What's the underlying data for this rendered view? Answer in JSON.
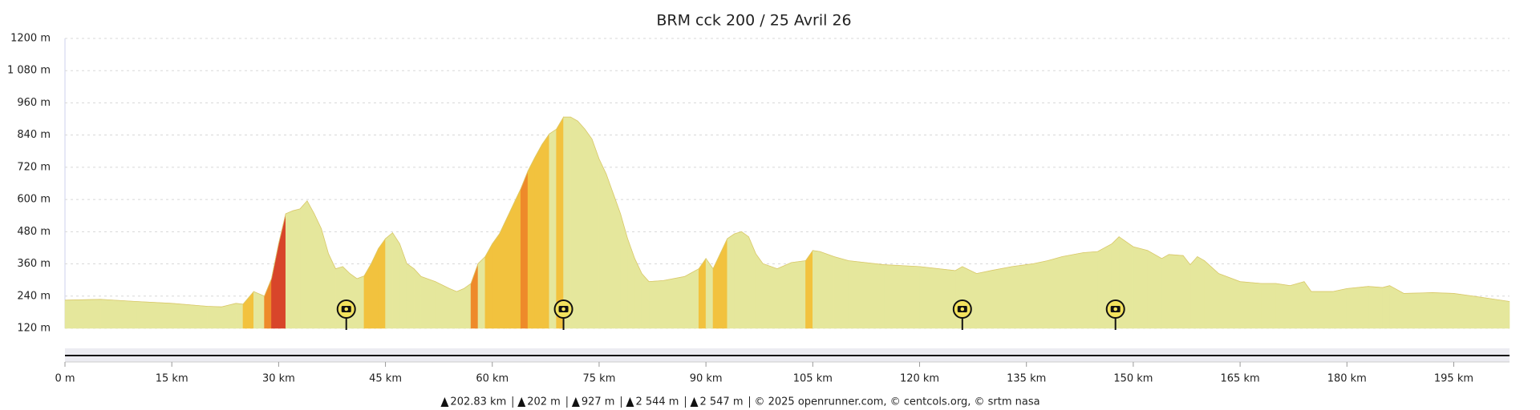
{
  "chart_data": {
    "type": "area",
    "title": "BRM cck 200 / 25 Avril 26",
    "color": "#e5e79c",
    "slope_colors": [
      "#e5e79c",
      "#f2c23e",
      "#ee8a2a",
      "#d8452a"
    ],
    "x": [
      0,
      5,
      10,
      15,
      20,
      22,
      24,
      25,
      26.5,
      28,
      29,
      30,
      31,
      32,
      33,
      34,
      35,
      36,
      37,
      38,
      39,
      40,
      41,
      42,
      43,
      44,
      45,
      46,
      47,
      48,
      49,
      50,
      52,
      54,
      55,
      56,
      57,
      58,
      59,
      60,
      61,
      62,
      63,
      64,
      65,
      66,
      67,
      68,
      69,
      70,
      71,
      72,
      73,
      74,
      75,
      76,
      77,
      78,
      79,
      80,
      81,
      82,
      84,
      87,
      89,
      90,
      91,
      92,
      93,
      94,
      95,
      96,
      97,
      98,
      100,
      102,
      104,
      105,
      106,
      108,
      110,
      115,
      120,
      125,
      126,
      128,
      130,
      133,
      136,
      138,
      140,
      143,
      145,
      147,
      148,
      150,
      152,
      154,
      155,
      157,
      158,
      159,
      160,
      162,
      165,
      168,
      170,
      172,
      174,
      175,
      178,
      180,
      183,
      185,
      186,
      188,
      192,
      195,
      198,
      202.83
    ],
    "values": [
      225,
      228,
      220,
      213,
      202,
      200,
      213,
      210,
      257,
      240,
      305,
      435,
      547,
      558,
      565,
      595,
      547,
      491,
      398,
      342,
      350,
      324,
      305,
      315,
      361,
      417,
      454,
      476,
      435,
      361,
      342,
      313,
      294,
      268,
      257,
      268,
      287,
      361,
      387,
      435,
      472,
      528,
      584,
      640,
      706,
      758,
      806,
      844,
      862,
      907,
      907,
      892,
      862,
      825,
      751,
      695,
      621,
      547,
      454,
      380,
      324,
      294,
      298,
      313,
      342,
      380,
      342,
      398,
      454,
      472,
      480,
      461,
      398,
      361,
      342,
      365,
      372,
      410,
      406,
      387,
      372,
      357,
      350,
      335,
      350,
      324,
      335,
      350,
      361,
      372,
      387,
      402,
      406,
      435,
      461,
      424,
      410,
      380,
      395,
      391,
      357,
      387,
      372,
      324,
      294,
      287,
      287,
      279,
      294,
      257,
      257,
      268,
      276,
      272,
      279,
      250,
      253,
      250,
      239,
      220
    ],
    "xlim": [
      0,
      202.83
    ],
    "ylim": [
      120,
      1200
    ],
    "yticks": [
      {
        "value": 120,
        "label": "120 m"
      },
      {
        "value": 240,
        "label": "240 m"
      },
      {
        "value": 360,
        "label": "360 m"
      },
      {
        "value": 480,
        "label": "480 m"
      },
      {
        "value": 600,
        "label": "600 m"
      },
      {
        "value": 720,
        "label": "720 m"
      },
      {
        "value": 840,
        "label": "840 m"
      },
      {
        "value": 960,
        "label": "960 m"
      },
      {
        "value": 1080,
        "label": "1 080 m"
      },
      {
        "value": 1200,
        "label": "1200 m"
      }
    ],
    "xticks": [
      {
        "value": 0,
        "label": "0 m"
      },
      {
        "value": 15,
        "label": "15 km"
      },
      {
        "value": 30,
        "label": "30 km"
      },
      {
        "value": 45,
        "label": "45 km"
      },
      {
        "value": 60,
        "label": "60 km"
      },
      {
        "value": 75,
        "label": "75 km"
      },
      {
        "value": 90,
        "label": "90 km"
      },
      {
        "value": 105,
        "label": "105 km"
      },
      {
        "value": 120,
        "label": "120 km"
      },
      {
        "value": 135,
        "label": "135 km"
      },
      {
        "value": 150,
        "label": "150 km"
      },
      {
        "value": 165,
        "label": "165 km"
      },
      {
        "value": 180,
        "label": "180 km"
      },
      {
        "value": 195,
        "label": "195 km"
      }
    ],
    "grid": true,
    "photo_markers_x": [
      39.5,
      70,
      126,
      147.5
    ],
    "footer": {
      "stats": [
        "202.83 km",
        "202 m",
        "927 m",
        "2 544 m",
        "2 547 m"
      ],
      "credits": "© 2025 openrunner.com, © centcols.org, © srtm nasa"
    }
  }
}
